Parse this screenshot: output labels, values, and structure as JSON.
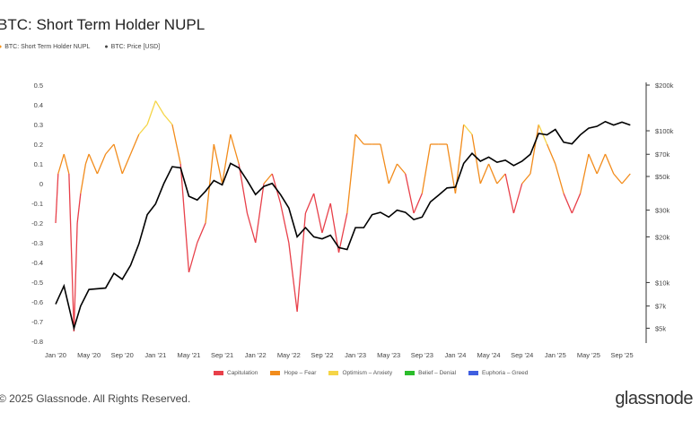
{
  "chart_data": {
    "type": "line",
    "title": "BTC: Short Term Holder NUPL",
    "legend_top": [
      {
        "name": "BTC: Short Term Holder NUPL",
        "color": "#f7931a"
      },
      {
        "name": "BTC: Price [USD]",
        "color": "#000000"
      }
    ],
    "legend_bottom": [
      {
        "name": "Capitulation",
        "color": "#e8404a",
        "range": [
          -1,
          0
        ]
      },
      {
        "name": "Hope – Fear",
        "color": "#f28c1c",
        "range": [
          0,
          0.25
        ]
      },
      {
        "name": "Optimism – Anxiety",
        "color": "#f5d547",
        "range": [
          0.25,
          0.5
        ]
      },
      {
        "name": "Belief – Denial",
        "color": "#2bbd2b",
        "range": [
          0.5,
          0.75
        ]
      },
      {
        "name": "Euphoria – Greed",
        "color": "#3f5ee0",
        "range": [
          0.75,
          1
        ]
      }
    ],
    "y_left": {
      "ticks": [
        "0.5",
        "0.4",
        "0.3",
        "0.2",
        "0.1",
        "0",
        "-0.1",
        "-0.2",
        "-0.3",
        "-0.4",
        "-0.5",
        "-0.6",
        "-0.7",
        "-0.8"
      ],
      "range": [
        -0.8,
        0.5
      ]
    },
    "y_right": {
      "ticks": [
        {
          "label": "$200k",
          "v": 200000
        },
        {
          "label": "$100k",
          "v": 100000
        },
        {
          "label": "$70k",
          "v": 70000
        },
        {
          "label": "$50k",
          "v": 50000
        },
        {
          "label": "$30k",
          "v": 30000
        },
        {
          "label": "$20k",
          "v": 20000
        },
        {
          "label": "$10k",
          "v": 10000
        },
        {
          "label": "$7k",
          "v": 7000
        },
        {
          "label": "$5k",
          "v": 5000
        }
      ],
      "scale": "log"
    },
    "x_ticks": [
      "Jan '20",
      "May '20",
      "Sep '20",
      "Jan '21",
      "May '21",
      "Sep '21",
      "Jan '22",
      "May '22",
      "Sep '22",
      "Jan '23",
      "May '23",
      "Sep '23",
      "Jan '24",
      "May '24",
      "Sep '24",
      "Jan '25",
      "May '25",
      "Sep '25"
    ],
    "x_unit": "months since Jan 2020",
    "nupl": [
      [
        0,
        -0.2
      ],
      [
        0.3,
        0.05
      ],
      [
        1,
        0.15
      ],
      [
        1.6,
        0.05
      ],
      [
        2.2,
        -0.75
      ],
      [
        2.6,
        -0.2
      ],
      [
        3,
        -0.05
      ],
      [
        3.6,
        0.1
      ],
      [
        4,
        0.15
      ],
      [
        5,
        0.05
      ],
      [
        6,
        0.15
      ],
      [
        7,
        0.2
      ],
      [
        8,
        0.05
      ],
      [
        9,
        0.15
      ],
      [
        10,
        0.25
      ],
      [
        11,
        0.3
      ],
      [
        12,
        0.42
      ],
      [
        13,
        0.35
      ],
      [
        14,
        0.3
      ],
      [
        15,
        0.1
      ],
      [
        16,
        -0.45
      ],
      [
        17,
        -0.3
      ],
      [
        18,
        -0.2
      ],
      [
        19,
        0.2
      ],
      [
        20,
        0.0
      ],
      [
        21,
        0.25
      ],
      [
        22,
        0.1
      ],
      [
        23,
        -0.15
      ],
      [
        24,
        -0.3
      ],
      [
        25,
        0.0
      ],
      [
        26,
        0.05
      ],
      [
        27,
        -0.1
      ],
      [
        28,
        -0.3
      ],
      [
        29,
        -0.65
      ],
      [
        30,
        -0.15
      ],
      [
        31,
        -0.05
      ],
      [
        32,
        -0.25
      ],
      [
        33,
        -0.1
      ],
      [
        34,
        -0.35
      ],
      [
        35,
        -0.15
      ],
      [
        36,
        0.25
      ],
      [
        37,
        0.2
      ],
      [
        38,
        0.2
      ],
      [
        39,
        0.2
      ],
      [
        40,
        0.0
      ],
      [
        41,
        0.1
      ],
      [
        42,
        0.05
      ],
      [
        43,
        -0.15
      ],
      [
        44,
        -0.05
      ],
      [
        45,
        0.2
      ],
      [
        46,
        0.2
      ],
      [
        47,
        0.2
      ],
      [
        48,
        -0.05
      ],
      [
        49,
        0.3
      ],
      [
        50,
        0.25
      ],
      [
        51,
        0.0
      ],
      [
        52,
        0.1
      ],
      [
        53,
        0.0
      ],
      [
        54,
        0.05
      ],
      [
        55,
        -0.15
      ],
      [
        56,
        0.0
      ],
      [
        57,
        0.05
      ],
      [
        58,
        0.3
      ],
      [
        59,
        0.2
      ],
      [
        60,
        0.1
      ],
      [
        61,
        -0.05
      ],
      [
        62,
        -0.15
      ],
      [
        63,
        -0.05
      ],
      [
        64,
        0.15
      ],
      [
        65,
        0.05
      ],
      [
        66,
        0.15
      ],
      [
        67,
        0.05
      ],
      [
        68,
        0.0
      ],
      [
        69,
        0.05
      ]
    ],
    "price": [
      [
        0,
        7200
      ],
      [
        1,
        9500
      ],
      [
        2.2,
        5000
      ],
      [
        3,
        7000
      ],
      [
        4,
        9000
      ],
      [
        6,
        9200
      ],
      [
        7,
        11500
      ],
      [
        8,
        10500
      ],
      [
        9,
        13000
      ],
      [
        10,
        18000
      ],
      [
        11,
        28000
      ],
      [
        12,
        33000
      ],
      [
        13,
        45000
      ],
      [
        14,
        58000
      ],
      [
        15,
        57000
      ],
      [
        16,
        37000
      ],
      [
        17,
        35000
      ],
      [
        18,
        40000
      ],
      [
        19,
        47000
      ],
      [
        20,
        44000
      ],
      [
        21,
        61000
      ],
      [
        22,
        57000
      ],
      [
        23,
        47000
      ],
      [
        24,
        38000
      ],
      [
        25,
        43000
      ],
      [
        26,
        45000
      ],
      [
        27,
        38000
      ],
      [
        28,
        31000
      ],
      [
        29,
        20000
      ],
      [
        30,
        23000
      ],
      [
        31,
        20000
      ],
      [
        32,
        19400
      ],
      [
        33,
        20500
      ],
      [
        34,
        17000
      ],
      [
        35,
        16500
      ],
      [
        36,
        23000
      ],
      [
        37,
        23000
      ],
      [
        38,
        28000
      ],
      [
        39,
        29000
      ],
      [
        40,
        27000
      ],
      [
        41,
        30000
      ],
      [
        42,
        29000
      ],
      [
        43,
        26000
      ],
      [
        44,
        27000
      ],
      [
        45,
        34000
      ],
      [
        46,
        37700
      ],
      [
        47,
        42000
      ],
      [
        48,
        42500
      ],
      [
        49,
        61000
      ],
      [
        50,
        71000
      ],
      [
        51,
        63000
      ],
      [
        52,
        67000
      ],
      [
        53,
        62000
      ],
      [
        54,
        64000
      ],
      [
        55,
        59000
      ],
      [
        56,
        63000
      ],
      [
        57,
        70000
      ],
      [
        58,
        96000
      ],
      [
        59,
        94000
      ],
      [
        60,
        102000
      ],
      [
        61,
        84000
      ],
      [
        62,
        82000
      ],
      [
        63,
        94000
      ],
      [
        64,
        104000
      ],
      [
        65,
        107000
      ],
      [
        66,
        115000
      ],
      [
        67,
        109000
      ],
      [
        68,
        114000
      ],
      [
        69,
        109000
      ]
    ]
  },
  "footer": "© 2025 Glassnode. All Rights Reserved.",
  "logo": "glassnode"
}
